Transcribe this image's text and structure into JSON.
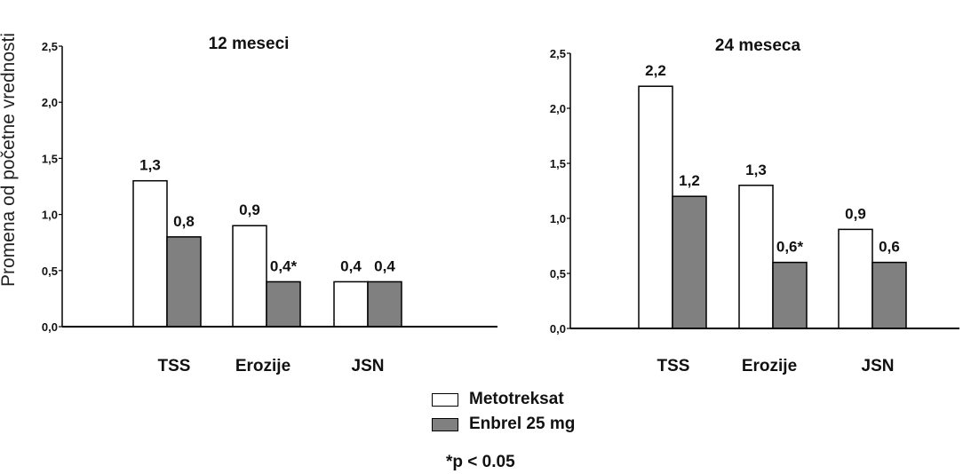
{
  "y_axis_label": "Promena od početne vrednosti",
  "legend": {
    "items": [
      {
        "label": "Metotreksat",
        "color": "#ffffff"
      },
      {
        "label": "Enbrel 25 mg",
        "color": "#808080"
      }
    ]
  },
  "footnote": "*p < 0.05",
  "chart_data": [
    {
      "type": "bar",
      "title": "12 meseci",
      "categories": [
        "TSS",
        "Erozije",
        "JSN"
      ],
      "series": [
        {
          "name": "Metotreksat",
          "values": [
            1.3,
            0.9,
            0.4
          ],
          "labels": [
            "1,3",
            "0,9",
            "0,4"
          ]
        },
        {
          "name": "Enbrel 25 mg",
          "values": [
            0.8,
            0.4,
            0.4
          ],
          "labels": [
            "0,8",
            "0,4*",
            "0,4"
          ]
        }
      ],
      "ylabel": "Promena od početne vrednosti",
      "ylim": [
        0,
        2.5
      ],
      "yticks": [
        "0,0",
        "0,5",
        "1,0",
        "1,5",
        "2,0",
        "2,5"
      ],
      "grid": false
    },
    {
      "type": "bar",
      "title": "24 meseca",
      "categories": [
        "TSS",
        "Erozije",
        "JSN"
      ],
      "series": [
        {
          "name": "Metotreksat",
          "values": [
            2.2,
            1.3,
            0.9
          ],
          "labels": [
            "2,2",
            "1,3",
            "0,9"
          ]
        },
        {
          "name": "Enbrel 25 mg",
          "values": [
            1.2,
            0.6,
            0.6
          ],
          "labels": [
            "1,2",
            "0,6*",
            "0,6"
          ]
        }
      ],
      "ylim": [
        0,
        2.5
      ],
      "yticks": [
        "0,0",
        "0,5",
        "1,0",
        "1,5",
        "2,0",
        "2,5"
      ],
      "grid": false
    }
  ]
}
